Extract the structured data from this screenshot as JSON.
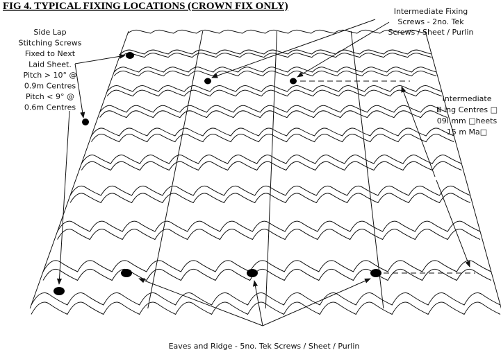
{
  "title": "FIG 4.  TYPICAL FIXING LOCATIONS (CROWN FIX ONLY)",
  "annotations": {
    "side_lap": [
      "Side Lap",
      "Stitching Screws",
      "Fixed to Next",
      "Laid Sheet.",
      "Pitch > 10° @",
      "0.9m Centres",
      "Pitch < 9° @",
      "0.6m Centres"
    ],
    "intermediate_fixing": [
      "Intermediate Fixing",
      "Screws - 2no. Tek",
      "Screws / Sheet / Purlin"
    ],
    "intermediate_centres": [
      "Intermediate",
      "Ⅲ ing Centres □",
      "09l mm □heets",
      "15 m Ma□"
    ],
    "eaves_ridge": "Eaves and Ridge - 5no. Tek Screws / Sheet / Purlin"
  }
}
